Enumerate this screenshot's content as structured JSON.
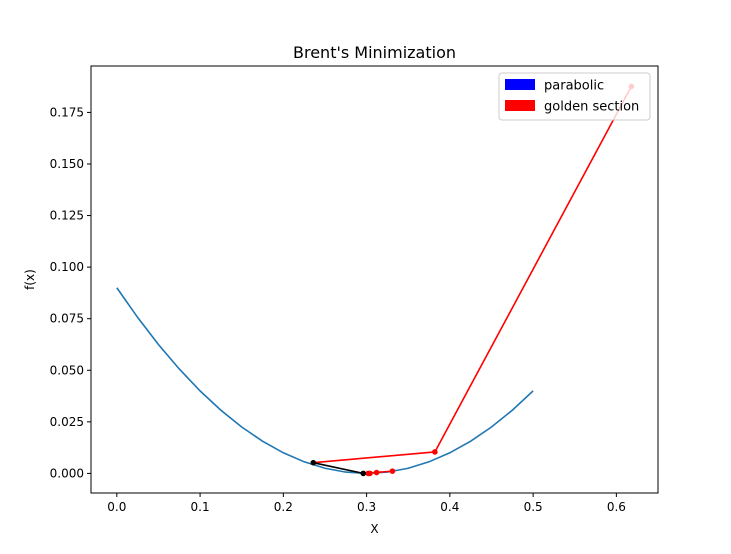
{
  "chart_data": {
    "type": "line",
    "title": "Brent's Minimization",
    "xlabel": "X",
    "ylabel": "f(x)",
    "xlim": [
      -0.031,
      0.65
    ],
    "ylim": [
      -0.0095,
      0.1975
    ],
    "xticks": [
      0.0,
      0.1,
      0.2,
      0.3,
      0.4,
      0.5,
      0.6
    ],
    "yticks": [
      0.0,
      0.025,
      0.05,
      0.075,
      0.1,
      0.125,
      0.15,
      0.175
    ],
    "xtick_labels": [
      "0.0",
      "0.1",
      "0.2",
      "0.3",
      "0.4",
      "0.5",
      "0.6"
    ],
    "ytick_labels": [
      "0.000",
      "0.025",
      "0.050",
      "0.075",
      "0.100",
      "0.125",
      "0.150",
      "0.175"
    ],
    "grid": false,
    "legend_position": "top-right",
    "legend": [
      {
        "label": "parabolic",
        "color": "#0000ff"
      },
      {
        "label": "golden section",
        "color": "#ff0000"
      }
    ],
    "curve": {
      "color": "#1f77b4",
      "x": [
        0.0,
        0.025,
        0.05,
        0.075,
        0.1,
        0.125,
        0.15,
        0.175,
        0.2,
        0.225,
        0.25,
        0.275,
        0.3,
        0.325,
        0.35,
        0.375,
        0.4,
        0.425,
        0.45,
        0.475,
        0.5
      ],
      "y": [
        0.09,
        0.075625,
        0.0625,
        0.050625,
        0.04,
        0.030625,
        0.0225,
        0.015625,
        0.01,
        0.005625,
        0.0025,
        0.000625,
        0.0,
        0.000625,
        0.0025,
        0.005625,
        0.01,
        0.015625,
        0.0225,
        0.030625,
        0.04
      ]
    },
    "step_segments": [
      {
        "method": "golden section",
        "color": "#ff0000",
        "x": [
          0.618,
          0.382
        ],
        "y": [
          0.1876,
          0.0104
        ]
      },
      {
        "method": "golden section",
        "color": "#ff0000",
        "x": [
          0.382,
          0.236
        ],
        "y": [
          0.0104,
          0.0052
        ]
      },
      {
        "method": "parabolic",
        "color": "#000000",
        "x": [
          0.236,
          0.296
        ],
        "y": [
          0.0052,
          0.0
        ]
      },
      {
        "method": "golden section",
        "color": "#ff0000",
        "x": [
          0.296,
          0.331
        ],
        "y": [
          0.0,
          0.0011
        ]
      }
    ],
    "step_points": {
      "red": {
        "color": "#ff0000",
        "x": [
          0.618,
          0.382,
          0.331,
          0.312,
          0.304,
          0.302
        ],
        "y": [
          0.1876,
          0.0104,
          0.0011,
          0.0004,
          0.0,
          0.0
        ]
      },
      "black": {
        "color": "#000000",
        "x": [
          0.236,
          0.296
        ],
        "y": [
          0.0052,
          0.0
        ]
      }
    }
  }
}
